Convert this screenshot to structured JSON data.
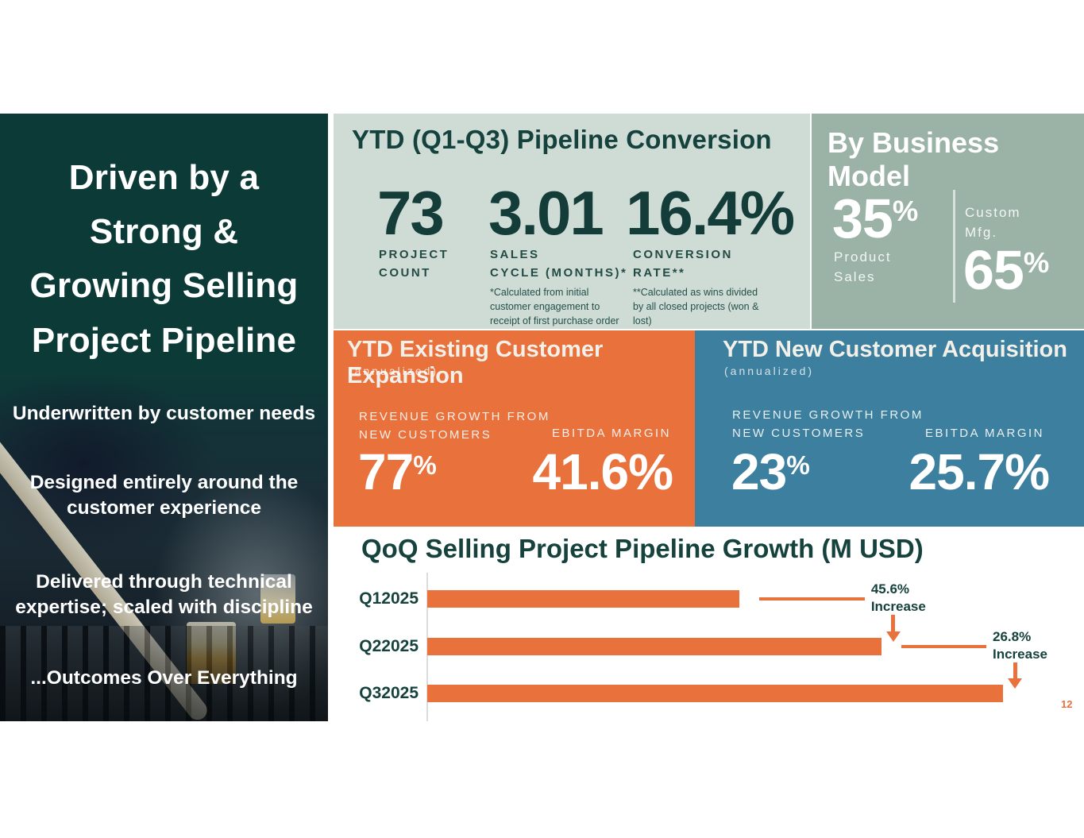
{
  "slide": {
    "page_number": "12"
  },
  "colors": {
    "dark_teal": "#0C3B37",
    "teal_text": "#16423D",
    "light_panel": "#CFDBD5",
    "sage_panel": "#9BB2A7",
    "orange": "#E8713C",
    "blue": "#3D7F9E"
  },
  "left_panel": {
    "title": "Driven by a\nStrong &\nGrowing Selling\nProject Pipeline",
    "bullets": [
      "Underwritten by customer needs",
      "Designed entirely around the\ncustomer experience",
      "Delivered through technical\nexpertise; scaled with discipline",
      "...Outcomes Over Everything"
    ]
  },
  "pipeline_conversion": {
    "title": "YTD (Q1-Q3) Pipeline Conversion",
    "stats": [
      {
        "value": "73",
        "label": "PROJECT\nCOUNT"
      },
      {
        "value": "3.01",
        "label": "SALES\nCYCLE (MONTHS)*",
        "footnote": "*Calculated from initial\ncustomer engagement to\nreceipt of first purchase order"
      },
      {
        "value": "16.4%",
        "label": "CONVERSION\nRATE**",
        "footnote": "**Calculated as wins divided\nby all closed projects (won &\nlost)"
      }
    ]
  },
  "business_model": {
    "title": "By Business Model",
    "product": {
      "value": "35",
      "unit": "%",
      "label": "Product\nSales"
    },
    "custom": {
      "label": "Custom\nMfg.",
      "value": "65",
      "unit": "%"
    }
  },
  "existing_customers": {
    "title": "YTD Existing Customer Expansion",
    "subtitle": "(annualized)",
    "revenue_growth": {
      "label": "REVENUE GROWTH FROM\nNEW CUSTOMERS",
      "value": "77",
      "unit": "%"
    },
    "ebitda": {
      "label": "EBITDA MARGIN",
      "value": "41.6%"
    }
  },
  "new_customers": {
    "title": "YTD New Customer Acquisition",
    "subtitle": "(annualized)",
    "revenue_growth": {
      "label": "REVENUE GROWTH FROM\nNEW CUSTOMERS",
      "value": "23",
      "unit": "%"
    },
    "ebitda": {
      "label": "EBITDA MARGIN",
      "value": "25.7%"
    }
  },
  "chart_data": {
    "type": "bar",
    "orientation": "horizontal",
    "title": "QoQ Selling Project Pipeline Growth (M USD)",
    "categories": [
      "Q12025",
      "Q22025",
      "Q32025"
    ],
    "values": [
      100,
      145.6,
      184.6
    ],
    "value_scale": "relative index, Q1 2025 = 100 (numeric axis not labeled on slide)",
    "bar_color": "#E8713C",
    "label_color": "#16423D",
    "grid": false,
    "legend": false,
    "annotations": [
      {
        "label": "45.6%",
        "sublabel": "Increase",
        "from": "Q12025",
        "to": "Q22025"
      },
      {
        "label": "26.8%",
        "sublabel": "Increase",
        "from": "Q22025",
        "to": "Q32025"
      }
    ]
  }
}
